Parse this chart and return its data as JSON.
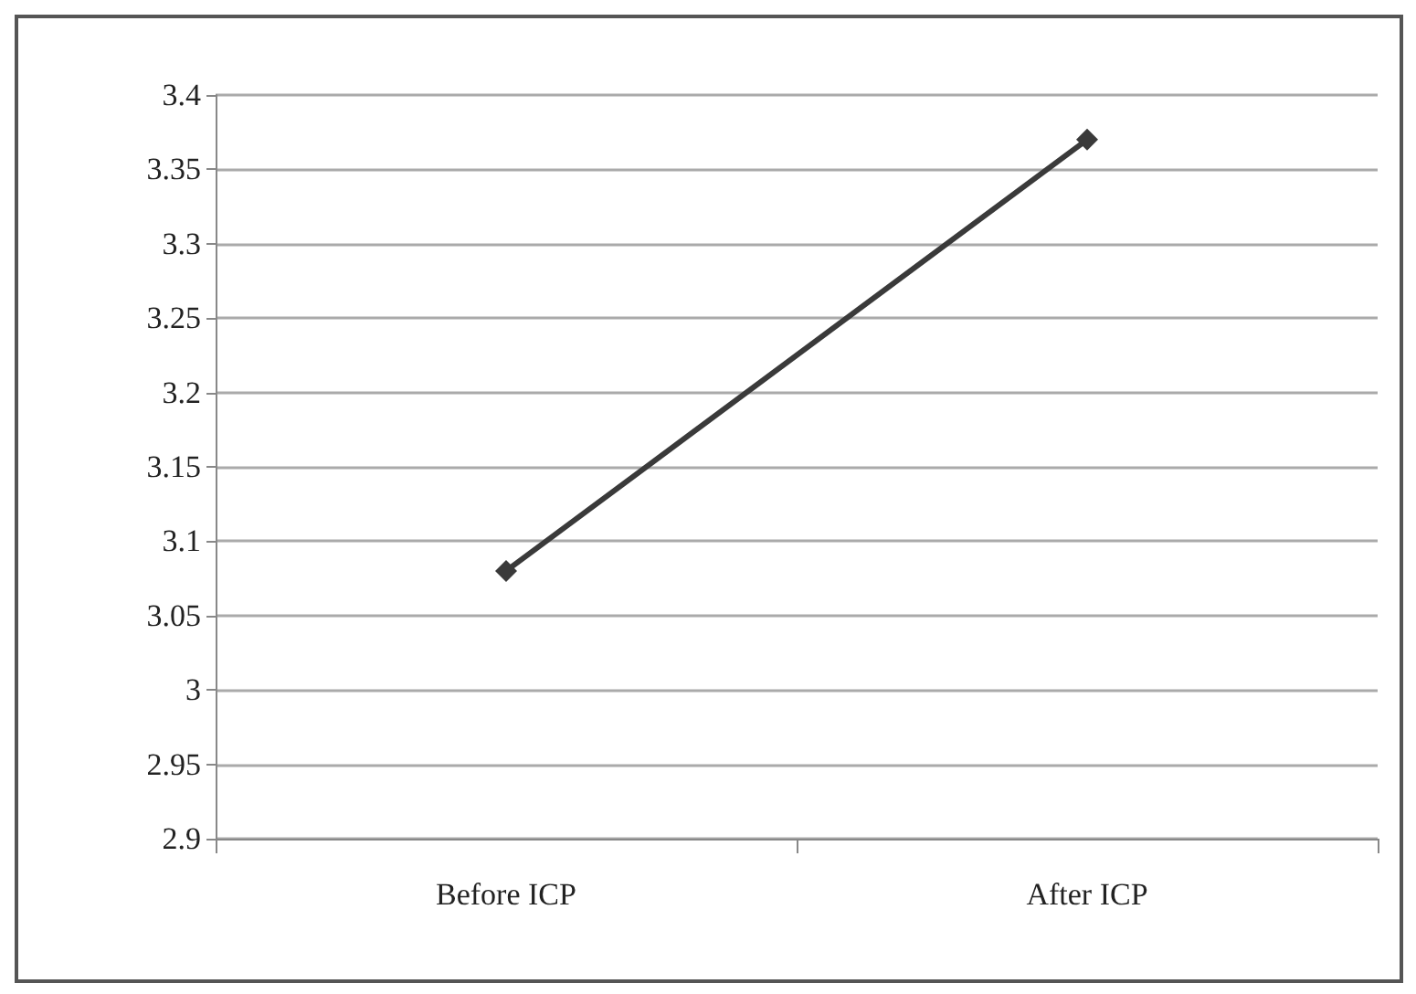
{
  "chart_data": {
    "type": "line",
    "categories": [
      "Before ICP",
      "After ICP"
    ],
    "series": [
      {
        "color": "#3a3a3a",
        "values": [
          3.08,
          3.37
        ]
      }
    ],
    "ylim": [
      2.9,
      3.4
    ],
    "yticks": [
      2.9,
      2.95,
      3,
      3.05,
      3.1,
      3.15,
      3.2,
      3.25,
      3.3,
      3.35,
      3.4
    ],
    "grid": "y",
    "marker": "diamond",
    "line_style": "solid"
  }
}
